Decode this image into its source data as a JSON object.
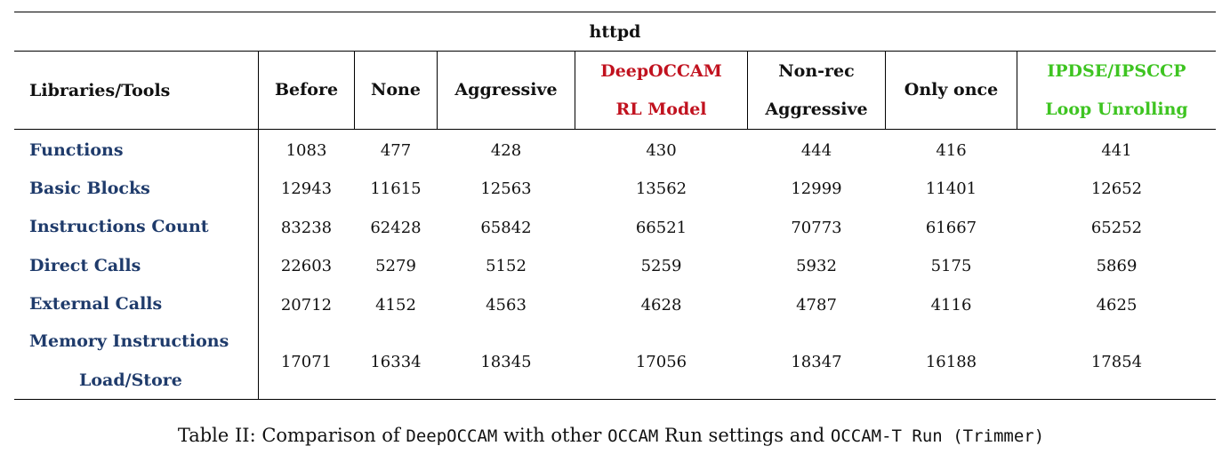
{
  "table": {
    "title": "httpd",
    "corner_header": "Libraries/Tools",
    "columns": [
      {
        "line1": "Before",
        "line2": "",
        "color": ""
      },
      {
        "line1": "None",
        "line2": "",
        "color": ""
      },
      {
        "line1": "Aggressive",
        "line2": "",
        "color": ""
      },
      {
        "line1": "DeepOCCAM",
        "line2": "RL Model",
        "color": "#c1121f"
      },
      {
        "line1": "Non-rec",
        "line2": "Aggressive",
        "color": ""
      },
      {
        "line1": "Only once",
        "line2": "",
        "color": ""
      },
      {
        "line1": "IPDSE/IPSCCP",
        "line2": "Loop Unrolling",
        "color": "#3ec421"
      }
    ],
    "rows": [
      {
        "label": "Functions",
        "label2": "",
        "values": [
          "1083",
          "477",
          "428",
          "430",
          "444",
          "416",
          "441"
        ]
      },
      {
        "label": "Basic Blocks",
        "label2": "",
        "values": [
          "12943",
          "11615",
          "12563",
          "13562",
          "12999",
          "11401",
          "12652"
        ]
      },
      {
        "label": "Instructions Count",
        "label2": "",
        "values": [
          "83238",
          "62428",
          "65842",
          "66521",
          "70773",
          "61667",
          "65252"
        ]
      },
      {
        "label": "Direct Calls",
        "label2": "",
        "values": [
          "22603",
          "5279",
          "5152",
          "5259",
          "5932",
          "5175",
          "5869"
        ]
      },
      {
        "label": "External Calls",
        "label2": "",
        "values": [
          "20712",
          "4152",
          "4563",
          "4628",
          "4787",
          "4116",
          "4625"
        ]
      },
      {
        "label": "Memory Instructions",
        "label2": "Load/Store",
        "values": [
          "17071",
          "16334",
          "18345",
          "17056",
          "18347",
          "16188",
          "17854"
        ]
      }
    ],
    "label_color": "#1f3b6b"
  },
  "caption": {
    "prefix": "Table II: Comparison of ",
    "code1": "DeepOCCAM",
    "mid1": " with other ",
    "code2": "OCCAM",
    "mid2": " Run settings and ",
    "code3": "OCCAM-T Run (Trimmer)"
  }
}
